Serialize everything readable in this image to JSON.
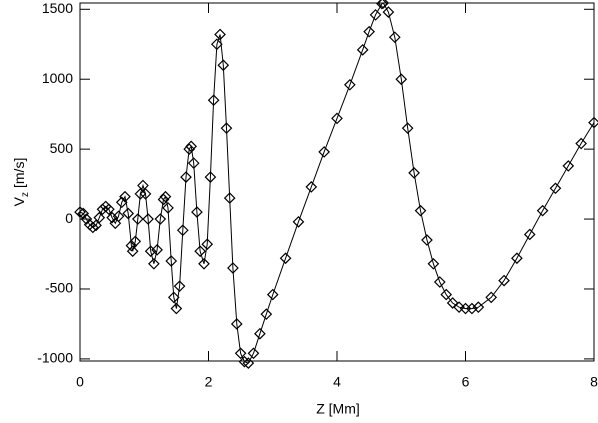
{
  "chart_data": {
    "type": "line",
    "xlabel": "Z [Mm]",
    "ylabel": {
      "main": "V",
      "sub": "z",
      "unit": "[m/s]"
    },
    "xlim": [
      0,
      8
    ],
    "ylim": [
      -1015,
      1545
    ],
    "xticks": [
      0,
      2,
      4,
      6,
      8
    ],
    "yticks": [
      -1000,
      -500,
      0,
      500,
      1000,
      1500
    ],
    "grid": false,
    "marker": "diamond",
    "color": "#000000",
    "x": [
      0,
      0.05,
      0.1,
      0.15,
      0.2,
      0.25,
      0.3,
      0.35,
      0.4,
      0.45,
      0.5,
      0.55,
      0.6,
      0.65,
      0.7,
      0.75,
      0.8,
      0.82,
      0.86,
      0.9,
      0.94,
      0.98,
      1.02,
      1.06,
      1.1,
      1.15,
      1.2,
      1.25,
      1.3,
      1.33,
      1.37,
      1.42,
      1.46,
      1.5,
      1.55,
      1.6,
      1.65,
      1.7,
      1.73,
      1.77,
      1.82,
      1.87,
      1.93,
      1.98,
      2.03,
      2.08,
      2.13,
      2.18,
      2.23,
      2.28,
      2.33,
      2.38,
      2.44,
      2.5,
      2.56,
      2.62,
      2.7,
      2.8,
      2.9,
      3.0,
      3.2,
      3.4,
      3.6,
      3.8,
      4.0,
      4.2,
      4.4,
      4.5,
      4.6,
      4.7,
      4.72,
      4.8,
      4.9,
      5.0,
      5.1,
      5.2,
      5.3,
      5.4,
      5.5,
      5.6,
      5.7,
      5.8,
      5.9,
      6.0,
      6.1,
      6.2,
      6.4,
      6.6,
      6.8,
      7.0,
      7.2,
      7.4,
      7.6,
      7.8,
      8.0
    ],
    "values": [
      50,
      40,
      0,
      -40,
      -60,
      -45,
      10,
      70,
      90,
      70,
      10,
      -30,
      20,
      120,
      160,
      40,
      -190,
      -230,
      -160,
      0,
      180,
      240,
      180,
      0,
      -230,
      -320,
      -220,
      0,
      140,
      160,
      80,
      -300,
      -560,
      -640,
      -480,
      -80,
      300,
      500,
      520,
      400,
      50,
      -230,
      -320,
      -180,
      300,
      850,
      1250,
      1320,
      1100,
      650,
      150,
      -350,
      -750,
      -960,
      -1020,
      -1030,
      -960,
      -820,
      -680,
      -540,
      -280,
      -20,
      230,
      480,
      720,
      960,
      1210,
      1340,
      1460,
      1540,
      1545,
      1480,
      1300,
      1000,
      650,
      330,
      60,
      -150,
      -320,
      -450,
      -540,
      -600,
      -630,
      -640,
      -640,
      -630,
      -560,
      -440,
      -280,
      -110,
      60,
      220,
      380,
      540,
      690
    ]
  }
}
